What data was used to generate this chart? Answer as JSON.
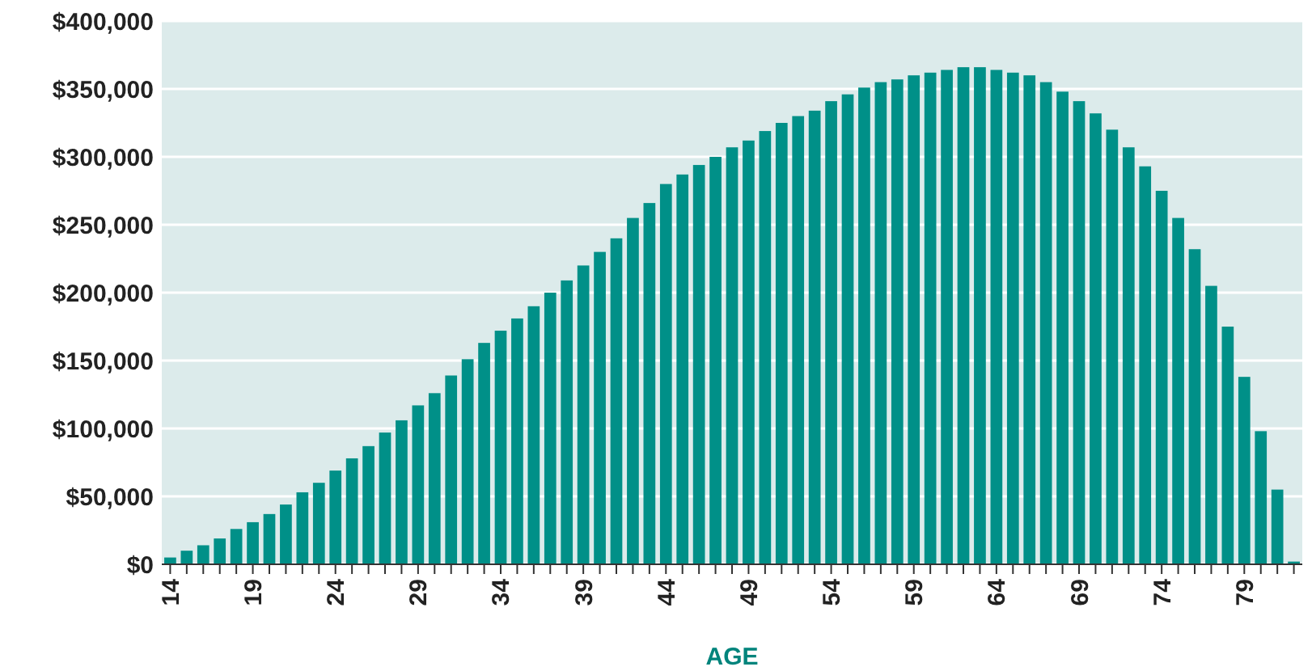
{
  "chart_data": {
    "type": "bar",
    "xlabel": "AGE",
    "categories": [
      "14",
      null,
      null,
      null,
      null,
      "19",
      null,
      null,
      null,
      null,
      "24",
      null,
      null,
      null,
      null,
      "29",
      null,
      null,
      null,
      null,
      "34",
      null,
      null,
      null,
      null,
      "39",
      null,
      null,
      null,
      null,
      "44",
      null,
      null,
      null,
      null,
      "49",
      null,
      null,
      null,
      null,
      "54",
      null,
      null,
      null,
      null,
      "59",
      null,
      null,
      null,
      null,
      "64",
      null,
      null,
      null,
      null,
      "69",
      null,
      null,
      null,
      null,
      "74",
      null,
      null,
      null,
      null,
      "79",
      null,
      null,
      null
    ],
    "values": [
      5000,
      10000,
      14000,
      19000,
      26000,
      31000,
      37000,
      44000,
      53000,
      60000,
      69000,
      78000,
      87000,
      97000,
      106000,
      117000,
      126000,
      139000,
      151000,
      163000,
      172000,
      181000,
      190000,
      200000,
      209000,
      220000,
      230000,
      240000,
      255000,
      266000,
      280000,
      287000,
      294000,
      300000,
      307000,
      312000,
      319000,
      325000,
      330000,
      334000,
      341000,
      346000,
      351000,
      355000,
      357000,
      360000,
      362000,
      364000,
      366000,
      366000,
      364000,
      362000,
      360000,
      355000,
      348000,
      341000,
      332000,
      320000,
      307000,
      293000,
      275000,
      255000,
      232000,
      205000,
      175000,
      138000,
      98000,
      55000,
      2000
    ],
    "color": "#009088",
    "ylim": [
      0,
      400000
    ],
    "yticks": [
      {
        "value": 0,
        "label": "$0"
      },
      {
        "value": 50000,
        "label": "$50,000"
      },
      {
        "value": 100000,
        "label": "$100,000"
      },
      {
        "value": 150000,
        "label": "$150,000"
      },
      {
        "value": 200000,
        "label": "$200,000"
      },
      {
        "value": 250000,
        "label": "$250,000"
      },
      {
        "value": 300000,
        "label": "$300,000"
      },
      {
        "value": 350000,
        "label": "$350,000"
      },
      {
        "value": 400000,
        "label": "$400,000"
      }
    ],
    "grid": "y"
  }
}
